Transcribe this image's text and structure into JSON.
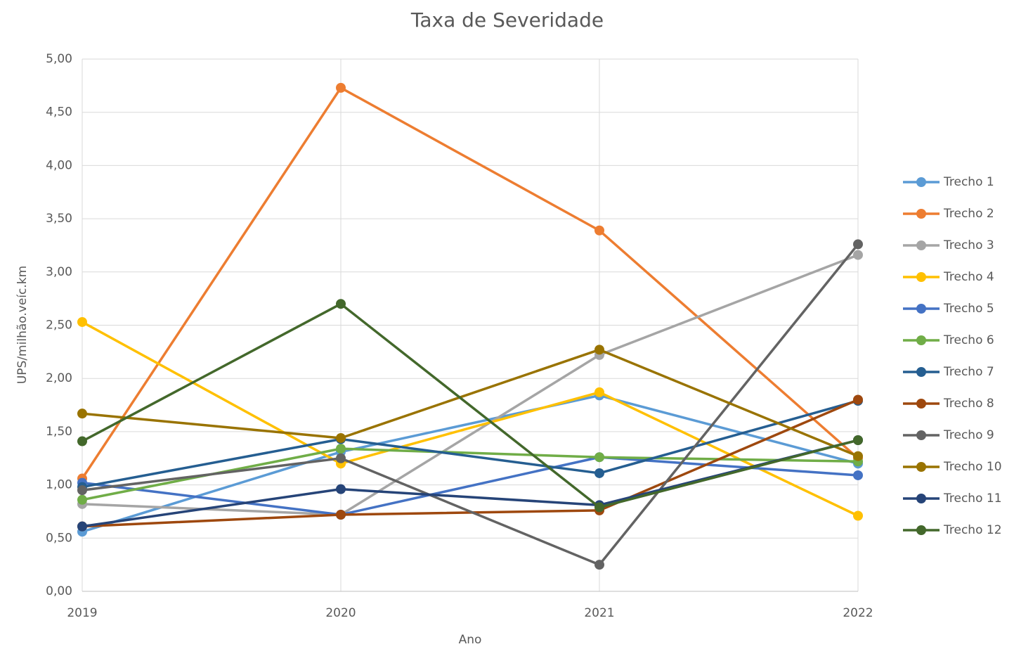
{
  "chart_data": {
    "type": "line",
    "title": "Taxa de Severidade",
    "x_label": "Ano",
    "y_label": "UPS/milhão.veíc.km",
    "categories": [
      "2019",
      "2020",
      "2021",
      "2022"
    ],
    "ylim": [
      0,
      5
    ],
    "yticks": [
      {
        "value": 0,
        "label": "0,00"
      },
      {
        "value": 0.5,
        "label": "0,50"
      },
      {
        "value": 1,
        "label": "1,00"
      },
      {
        "value": 1.5,
        "label": "1,50"
      },
      {
        "value": 2,
        "label": "2,00"
      },
      {
        "value": 2.5,
        "label": "2,50"
      },
      {
        "value": 3,
        "label": "3,00"
      },
      {
        "value": 3.5,
        "label": "3,50"
      },
      {
        "value": 4,
        "label": "4,00"
      },
      {
        "value": 4.5,
        "label": "4,50"
      },
      {
        "value": 5,
        "label": "5,00"
      }
    ],
    "grid": true,
    "legend": "right",
    "series": [
      {
        "name": "Trecho 1",
        "color": "#5B9BD5",
        "values": [
          0.56,
          1.31,
          1.84,
          1.2
        ]
      },
      {
        "name": "Trecho 2",
        "color": "#ED7D31",
        "values": [
          1.06,
          4.73,
          3.39,
          1.25
        ]
      },
      {
        "name": "Trecho 3",
        "color": "#A5A5A5",
        "values": [
          0.82,
          0.72,
          2.22,
          3.16
        ]
      },
      {
        "name": "Trecho 4",
        "color": "#FFC000",
        "values": [
          2.53,
          1.2,
          1.87,
          0.71
        ]
      },
      {
        "name": "Trecho 5",
        "color": "#4472C4",
        "values": [
          1.02,
          0.72,
          1.26,
          1.09
        ]
      },
      {
        "name": "Trecho 6",
        "color": "#70AD47",
        "values": [
          0.86,
          1.34,
          1.26,
          1.22
        ]
      },
      {
        "name": "Trecho 7",
        "color": "#255E91",
        "values": [
          0.98,
          1.43,
          1.11,
          1.79
        ]
      },
      {
        "name": "Trecho 8",
        "color": "#9E480E",
        "values": [
          0.61,
          0.72,
          0.76,
          1.8
        ]
      },
      {
        "name": "Trecho 9",
        "color": "#636363",
        "values": [
          0.95,
          1.25,
          0.25,
          3.26
        ]
      },
      {
        "name": "Trecho 10",
        "color": "#997300",
        "values": [
          1.67,
          1.44,
          2.27,
          1.27
        ]
      },
      {
        "name": "Trecho 11",
        "color": "#264478",
        "values": [
          0.61,
          0.96,
          0.81,
          1.42
        ]
      },
      {
        "name": "Trecho 12",
        "color": "#43682B",
        "values": [
          1.41,
          2.7,
          0.79,
          1.42
        ]
      }
    ]
  }
}
